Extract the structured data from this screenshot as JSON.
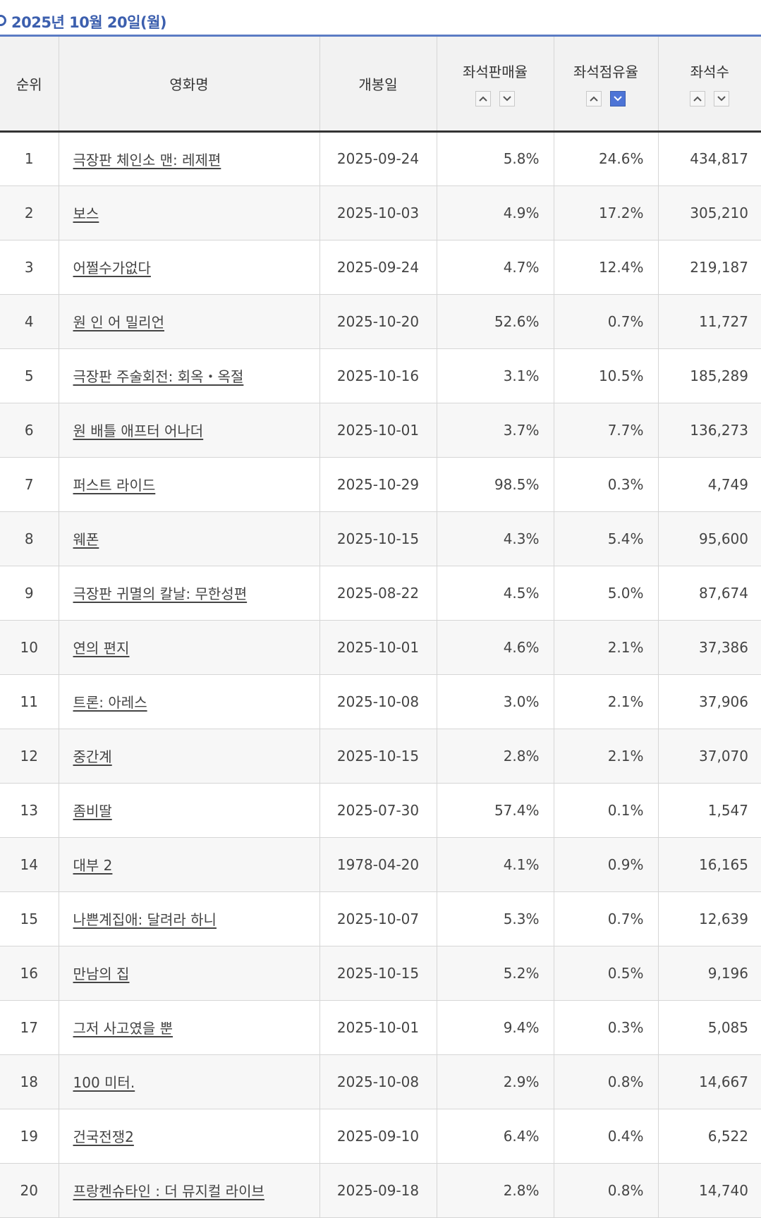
{
  "date_header": "2025년 10월 20일(월)",
  "columns": {
    "rank": "순위",
    "title": "영화명",
    "open_date": "개봉일",
    "sales_rate": "좌석판매율",
    "share_rate": "좌석점유율",
    "seats": "좌석수"
  },
  "colors": {
    "accent": "#3c5fae",
    "active_sort": "#4d74d6"
  },
  "active_sort": {
    "column": "share_rate",
    "direction": "desc"
  },
  "rows": [
    {
      "rank": "1",
      "title": "극장판 체인소 맨: 레제편",
      "open": "2025-09-24",
      "sales": "5.8%",
      "share": "24.6%",
      "seats": "434,817"
    },
    {
      "rank": "2",
      "title": "보스",
      "open": "2025-10-03",
      "sales": "4.9%",
      "share": "17.2%",
      "seats": "305,210"
    },
    {
      "rank": "3",
      "title": "어쩔수가없다",
      "open": "2025-09-24",
      "sales": "4.7%",
      "share": "12.4%",
      "seats": "219,187"
    },
    {
      "rank": "4",
      "title": "원 인 어 밀리언",
      "open": "2025-10-20",
      "sales": "52.6%",
      "share": "0.7%",
      "seats": "11,727"
    },
    {
      "rank": "5",
      "title": "극장판 주술회전: 회옥・옥절",
      "open": "2025-10-16",
      "sales": "3.1%",
      "share": "10.5%",
      "seats": "185,289"
    },
    {
      "rank": "6",
      "title": "원 배틀 애프터 어나더",
      "open": "2025-10-01",
      "sales": "3.7%",
      "share": "7.7%",
      "seats": "136,273"
    },
    {
      "rank": "7",
      "title": "퍼스트 라이드",
      "open": "2025-10-29",
      "sales": "98.5%",
      "share": "0.3%",
      "seats": "4,749"
    },
    {
      "rank": "8",
      "title": "웨폰",
      "open": "2025-10-15",
      "sales": "4.3%",
      "share": "5.4%",
      "seats": "95,600"
    },
    {
      "rank": "9",
      "title": "극장판 귀멸의 칼날: 무한성편",
      "open": "2025-08-22",
      "sales": "4.5%",
      "share": "5.0%",
      "seats": "87,674"
    },
    {
      "rank": "10",
      "title": "연의 편지",
      "open": "2025-10-01",
      "sales": "4.6%",
      "share": "2.1%",
      "seats": "37,386"
    },
    {
      "rank": "11",
      "title": "트론: 아레스",
      "open": "2025-10-08",
      "sales": "3.0%",
      "share": "2.1%",
      "seats": "37,906"
    },
    {
      "rank": "12",
      "title": "중간계",
      "open": "2025-10-15",
      "sales": "2.8%",
      "share": "2.1%",
      "seats": "37,070"
    },
    {
      "rank": "13",
      "title": "좀비딸",
      "open": "2025-07-30",
      "sales": "57.4%",
      "share": "0.1%",
      "seats": "1,547"
    },
    {
      "rank": "14",
      "title": "대부 2",
      "open": "1978-04-20",
      "sales": "4.1%",
      "share": "0.9%",
      "seats": "16,165"
    },
    {
      "rank": "15",
      "title": "나쁜계집애: 달려라 하니",
      "open": "2025-10-07",
      "sales": "5.3%",
      "share": "0.7%",
      "seats": "12,639"
    },
    {
      "rank": "16",
      "title": "만남의 집",
      "open": "2025-10-15",
      "sales": "5.2%",
      "share": "0.5%",
      "seats": "9,196"
    },
    {
      "rank": "17",
      "title": "그저 사고였을 뿐",
      "open": "2025-10-01",
      "sales": "9.4%",
      "share": "0.3%",
      "seats": "5,085"
    },
    {
      "rank": "18",
      "title": "100 미터.",
      "open": "2025-10-08",
      "sales": "2.9%",
      "share": "0.8%",
      "seats": "14,667"
    },
    {
      "rank": "19",
      "title": "건국전쟁2",
      "open": "2025-09-10",
      "sales": "6.4%",
      "share": "0.4%",
      "seats": "6,522"
    },
    {
      "rank": "20",
      "title": "프랑켄슈타인 : 더 뮤지컬 라이브",
      "open": "2025-09-18",
      "sales": "2.8%",
      "share": "0.8%",
      "seats": "14,740"
    }
  ]
}
